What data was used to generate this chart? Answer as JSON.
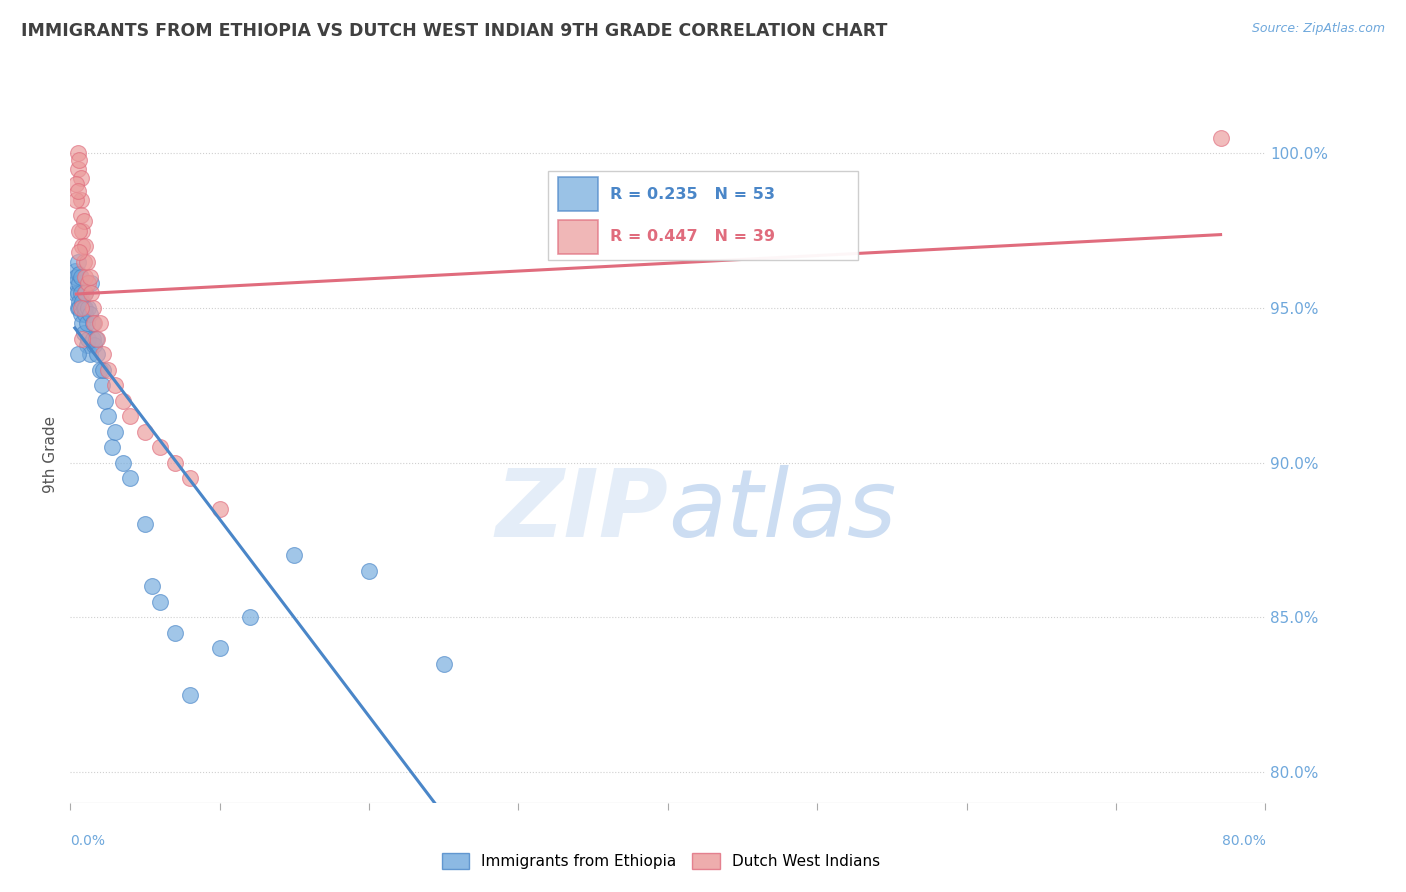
{
  "title": "IMMIGRANTS FROM ETHIOPIA VS DUTCH WEST INDIAN 9TH GRADE CORRELATION CHART",
  "source": "Source: ZipAtlas.com",
  "ylabel": "9th Grade",
  "y_ticks": [
    80.0,
    85.0,
    90.0,
    95.0,
    100.0
  ],
  "y_tick_labels": [
    "80.0%",
    "85.0%",
    "90.0%",
    "95.0%",
    "100.0%"
  ],
  "xlim": [
    0.0,
    80.0
  ],
  "ylim": [
    79.0,
    101.5
  ],
  "blue_R": 0.235,
  "blue_N": 53,
  "pink_R": 0.447,
  "pink_N": 39,
  "blue_label": "Immigrants from Ethiopia",
  "pink_label": "Dutch West Indians",
  "blue_color": "#6fa8dc",
  "pink_color": "#ea9999",
  "blue_line_color": "#4a86c8",
  "pink_line_color": "#e06c7d",
  "title_color": "#404040",
  "axis_color": "#6fa8dc",
  "grid_color": "#d0d0d0",
  "blue_x": [
    0.3,
    0.3,
    0.4,
    0.4,
    0.5,
    0.5,
    0.5,
    0.6,
    0.6,
    0.6,
    0.6,
    0.7,
    0.7,
    0.7,
    0.8,
    0.8,
    0.9,
    0.9,
    1.0,
    1.0,
    1.0,
    1.1,
    1.1,
    1.2,
    1.2,
    1.3,
    1.3,
    1.5,
    1.5,
    1.6,
    1.7,
    1.8,
    2.0,
    2.1,
    2.2,
    2.3,
    2.5,
    2.8,
    3.0,
    3.5,
    4.0,
    5.0,
    5.5,
    6.0,
    7.0,
    8.0,
    10.0,
    12.0,
    15.0,
    20.0,
    25.0,
    0.5,
    1.4
  ],
  "blue_y": [
    95.5,
    96.2,
    95.8,
    96.0,
    95.0,
    95.5,
    96.5,
    95.2,
    95.8,
    96.1,
    95.0,
    95.5,
    96.0,
    94.8,
    95.2,
    94.5,
    95.0,
    94.2,
    95.5,
    94.8,
    95.0,
    94.5,
    93.8,
    95.0,
    94.0,
    94.8,
    93.5,
    94.5,
    94.0,
    93.8,
    94.0,
    93.5,
    93.0,
    92.5,
    93.0,
    92.0,
    91.5,
    90.5,
    91.0,
    90.0,
    89.5,
    88.0,
    86.0,
    85.5,
    84.5,
    82.5,
    84.0,
    85.0,
    87.0,
    86.5,
    83.5,
    93.5,
    95.8
  ],
  "pink_x": [
    0.5,
    0.5,
    0.6,
    0.7,
    0.7,
    0.7,
    0.8,
    0.8,
    0.9,
    0.9,
    1.0,
    1.0,
    1.0,
    1.1,
    1.2,
    1.3,
    1.4,
    1.5,
    1.6,
    1.8,
    2.0,
    2.2,
    2.5,
    3.0,
    3.5,
    4.0,
    5.0,
    6.0,
    7.0,
    8.0,
    10.0,
    0.4,
    0.4,
    0.5,
    0.6,
    0.6,
    0.7,
    0.8,
    77.0
  ],
  "pink_y": [
    100.0,
    99.5,
    99.8,
    99.2,
    98.5,
    98.0,
    97.5,
    97.0,
    97.8,
    96.5,
    97.0,
    96.0,
    95.5,
    96.5,
    95.8,
    96.0,
    95.5,
    95.0,
    94.5,
    94.0,
    94.5,
    93.5,
    93.0,
    92.5,
    92.0,
    91.5,
    91.0,
    90.5,
    90.0,
    89.5,
    88.5,
    99.0,
    98.5,
    98.8,
    97.5,
    96.8,
    95.0,
    94.0,
    100.5
  ]
}
